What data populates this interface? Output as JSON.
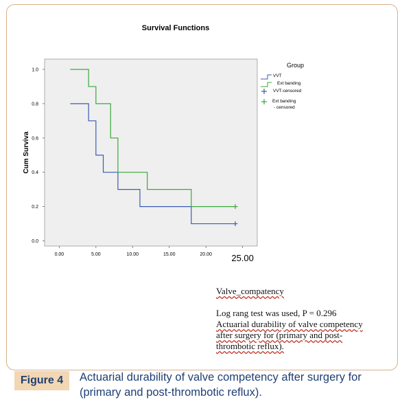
{
  "figure": {
    "label": "Figure 4",
    "caption": "Actuarial durability of valve competency after surgery for (primary and post-thrombotic reflux)."
  },
  "notes": {
    "heading": "Valve_compatency",
    "line1": "Log rang test was used, P = 0.296",
    "line2": "Actuarial durability of valve competency",
    "line3": "after surgery for (primary and post-",
    "line4": "thrombotic reflux)."
  },
  "chart_data": {
    "type": "line",
    "step": true,
    "title": "Survival Functions",
    "xlabel": "",
    "ylabel": "Cum Surviva",
    "xlim": [
      -2,
      27
    ],
    "ylim": [
      -0.03,
      1.06
    ],
    "xticks": [
      0,
      5,
      10,
      15,
      20,
      25
    ],
    "xtick_labels": [
      "0.00",
      "5.00",
      "10.00",
      "15.00",
      "20.00",
      "25.00"
    ],
    "yticks": [
      0.0,
      0.2,
      0.4,
      0.6,
      0.8,
      1.0
    ],
    "ytick_labels": [
      "0.0",
      "0.2",
      "0.4",
      "0.6",
      "0.8",
      "1.0"
    ],
    "grid": false,
    "plot_background": "#efefef",
    "legend": {
      "title": "Group",
      "placement": "right",
      "entries": [
        {
          "label": "VVT",
          "symbol": "line",
          "color": "#3a5bb0"
        },
        {
          "label": "Ext banding",
          "symbol": "line",
          "color": "#3aa83a"
        },
        {
          "label": "VVT-censored",
          "symbol": "plus",
          "color": "#3a5bb0"
        },
        {
          "label": "Ext banding - censored",
          "symbol": "plus",
          "color": "#3aa83a"
        }
      ]
    },
    "series": [
      {
        "name": "VVT",
        "color": "#3a5bb0",
        "x": [
          1.5,
          4,
          5,
          6,
          8,
          11,
          18,
          24
        ],
        "y": [
          0.8,
          0.7,
          0.5,
          0.4,
          0.3,
          0.2,
          0.1,
          0.1
        ],
        "censored": [
          {
            "x": 24,
            "y": 0.1
          }
        ]
      },
      {
        "name": "Ext banding",
        "color": "#3aa83a",
        "x": [
          1.5,
          4,
          5,
          7,
          8,
          12,
          18,
          24
        ],
        "y": [
          1.0,
          0.9,
          0.8,
          0.6,
          0.4,
          0.3,
          0.2,
          0.2
        ],
        "censored": [
          {
            "x": 24,
            "y": 0.2
          }
        ]
      }
    ]
  }
}
